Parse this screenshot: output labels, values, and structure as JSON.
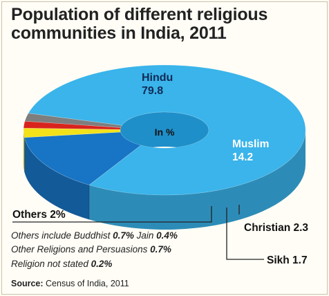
{
  "title_line1": "Population of different religious",
  "title_line2": "communities in India, 2011",
  "center_label": "In %",
  "chart_data": {
    "type": "pie",
    "variant": "3d-donut",
    "unit": "%",
    "slices": [
      {
        "label": "Hindu",
        "value": 79.8,
        "color": "#3ab4ea",
        "label_text": "Hindu",
        "value_text": "79.8"
      },
      {
        "label": "Muslim",
        "value": 14.2,
        "color": "#1874c4",
        "label_text": "Muslim",
        "value_text": "14.2"
      },
      {
        "label": "Christian",
        "value": 2.3,
        "color": "#f3e11a",
        "label_text": "Christian 2.3"
      },
      {
        "label": "Sikh",
        "value": 1.7,
        "color": "#d9231d",
        "label_text": "Sikh 1.7"
      },
      {
        "label": "Others",
        "value": 2,
        "color": "#7e7e7e",
        "label_text": "Others 2%"
      }
    ]
  },
  "notes": {
    "line1_prefix": "Others include Buddhist ",
    "line1_b1": "0.7%",
    "line1_mid": " Jain ",
    "line1_b2": "0.4%",
    "line2_prefix": "Other Religions and Persuasions ",
    "line2_b": "0.7%",
    "line3_prefix": "Religion not stated ",
    "line3_b": "0.2%"
  },
  "source": {
    "label": "Source:",
    "text": " Census of India, 2011"
  }
}
